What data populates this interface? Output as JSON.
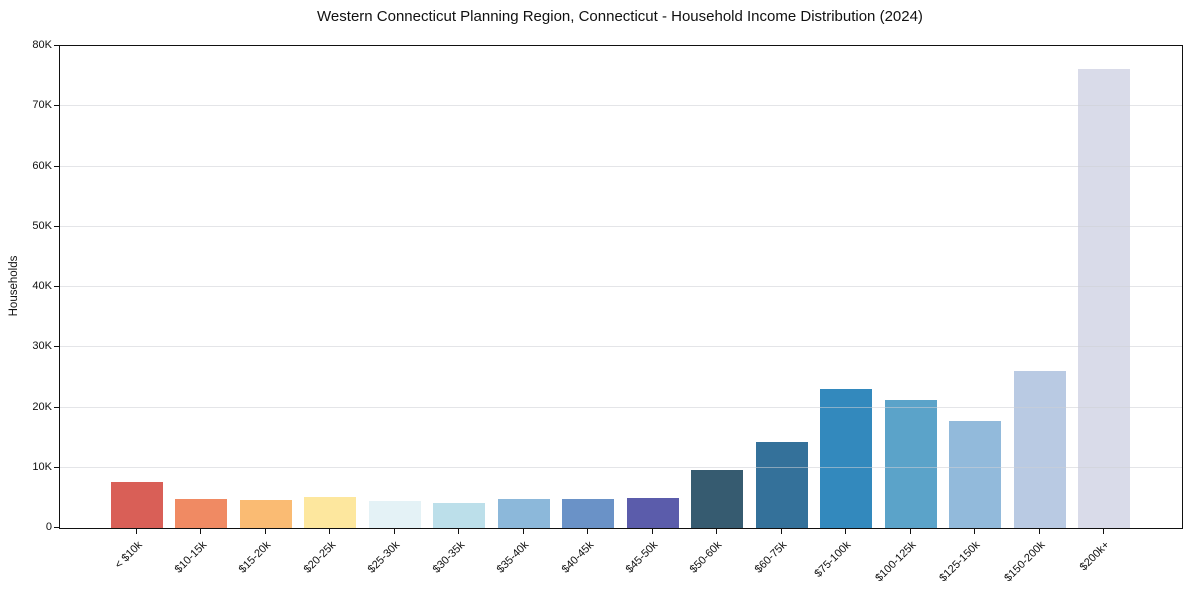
{
  "chart_data": {
    "type": "bar",
    "title": "Western Connecticut Planning Region, Connecticut - Household Income Distribution (2024)",
    "xlabel": "",
    "ylabel": "Households",
    "categories": [
      "< $10k",
      "$10-15k",
      "$15-20k",
      "$20-25k",
      "$25-30k",
      "$30-35k",
      "$35-40k",
      "$40-45k",
      "$45-50k",
      "$50-60k",
      "$60-75k",
      "$75-100k",
      "$100-125k",
      "$125-150k",
      "$150-200k",
      "$200k+"
    ],
    "values": [
      7700,
      4800,
      4600,
      5200,
      4400,
      4100,
      4800,
      4800,
      4900,
      9600,
      14300,
      23000,
      21300,
      17800,
      26000,
      76100
    ],
    "bar_colors": [
      "#d95f57",
      "#f08a63",
      "#fabb73",
      "#fde79e",
      "#e4f2f6",
      "#bcdfea",
      "#8cb8da",
      "#6a92c7",
      "#5b5cab",
      "#365b70",
      "#34719a",
      "#3389bd",
      "#5ba3c9",
      "#92badb",
      "#b9cae3",
      "#d9dbe9"
    ],
    "ylim": [
      0,
      80000
    ],
    "ytick_values": [
      0,
      10000,
      20000,
      30000,
      40000,
      50000,
      60000,
      70000,
      80000
    ],
    "ytick_labels": [
      "0",
      "10K",
      "20K",
      "30K",
      "40K",
      "50K",
      "60K",
      "70K",
      "80K"
    ],
    "legend": "none",
    "grid": "horizontal",
    "background_color": "#ffffff"
  }
}
